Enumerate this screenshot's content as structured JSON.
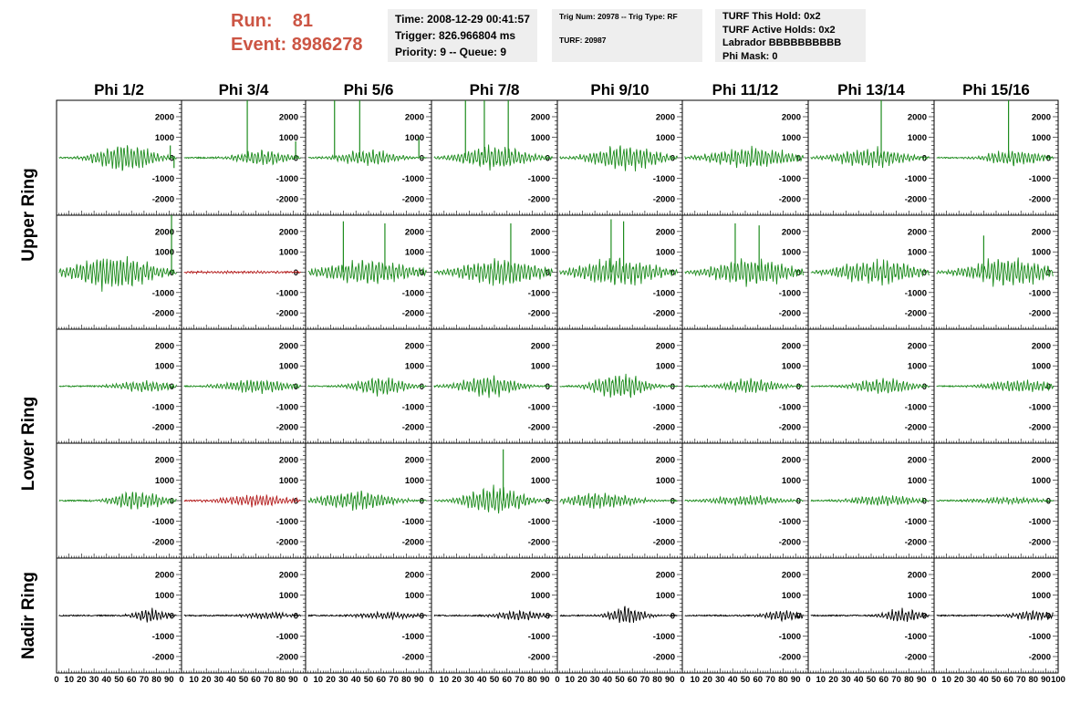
{
  "header": {
    "run_label": "Run:",
    "run_value": "81",
    "event_label": "Event:",
    "event_value": "8986278",
    "time": "Time: 2008-12-29 00:41:57",
    "trigger": "Trigger: 826.966804 ms",
    "priority": "Priority: 9 -- Queue: 9",
    "trig_num": "Trig Num: 20978 -- Trig Type: RF",
    "turf": "TURF: 20987",
    "turf_this_hold": "TURF This Hold: 0x2",
    "turf_active_holds": "TURF Active Holds: 0x2",
    "labrador": "Labrador BBBBBBBBBB",
    "phi_mask": "Phi Mask: 0"
  },
  "colors": {
    "trace_green": "#1e8c1e",
    "trace_red": "#b41e1e",
    "trace_black": "#000000",
    "run_text": "#cc5544",
    "box_bg": "#eeeeee"
  },
  "chart_data": {
    "type": "line",
    "columns": [
      "Phi 1/2",
      "Phi 3/4",
      "Phi 5/6",
      "Phi 7/8",
      "Phi 9/10",
      "Phi 11/12",
      "Phi 13/14",
      "Phi 15/16"
    ],
    "row_labels": [
      "Upper Ring",
      "Lower Ring",
      "Nadir Ring"
    ],
    "ylim": [
      -2800,
      2800
    ],
    "yticks": [
      -2000,
      -1000,
      0,
      1000,
      2000
    ],
    "xlim": [
      0,
      100
    ],
    "xticks": [
      0,
      10,
      20,
      30,
      40,
      50,
      60,
      70,
      80,
      90,
      100
    ],
    "grid": false,
    "rows": [
      {
        "group": "Upper Ring",
        "panels": [
          {
            "color": "green",
            "amp": 800,
            "center": 55,
            "width": 25,
            "spikes": [
              [
                91,
                600
              ],
              [
                94,
                -500
              ]
            ]
          },
          {
            "color": "green",
            "amp": 450,
            "center": 65,
            "width": 22,
            "spikes": [
              [
                53,
                2800
              ],
              [
                92,
                800
              ]
            ]
          },
          {
            "color": "green",
            "amp": 450,
            "center": 50,
            "width": 25,
            "spikes": [
              [
                23,
                2800
              ],
              [
                43,
                2800
              ],
              [
                90,
                1000
              ]
            ]
          },
          {
            "color": "green",
            "amp": 700,
            "center": 50,
            "width": 30,
            "spikes": [
              [
                27,
                2800
              ],
              [
                42,
                2800
              ],
              [
                61,
                2800
              ]
            ]
          },
          {
            "color": "green",
            "amp": 700,
            "center": 55,
            "width": 30,
            "spikes": []
          },
          {
            "color": "green",
            "amp": 600,
            "center": 55,
            "width": 35,
            "spikes": []
          },
          {
            "color": "green",
            "amp": 550,
            "center": 50,
            "width": 30,
            "spikes": [
              [
                58,
                2800
              ]
            ]
          },
          {
            "color": "green",
            "amp": 450,
            "center": 65,
            "width": 25,
            "spikes": [
              [
                60,
                2800
              ]
            ]
          }
        ]
      },
      {
        "group": "Upper Ring",
        "panels": [
          {
            "color": "green",
            "amp": 1000,
            "center": 45,
            "width": 35,
            "spikes": [
              [
                92,
                2800
              ]
            ]
          },
          {
            "color": "red",
            "amp": 60,
            "center": 50,
            "width": 60,
            "spikes": []
          },
          {
            "color": "green",
            "amp": 700,
            "center": 50,
            "width": 40,
            "spikes": [
              [
                30,
                2500
              ],
              [
                63,
                2400
              ]
            ]
          },
          {
            "color": "green",
            "amp": 800,
            "center": 55,
            "width": 35,
            "spikes": [
              [
                63,
                2400
              ]
            ]
          },
          {
            "color": "green",
            "amp": 800,
            "center": 50,
            "width": 35,
            "spikes": [
              [
                43,
                2600
              ],
              [
                53,
                2500
              ]
            ]
          },
          {
            "color": "green",
            "amp": 800,
            "center": 55,
            "width": 35,
            "spikes": [
              [
                42,
                2400
              ],
              [
                61,
                2300
              ]
            ]
          },
          {
            "color": "green",
            "amp": 700,
            "center": 55,
            "width": 35,
            "spikes": []
          },
          {
            "color": "green",
            "amp": 800,
            "center": 60,
            "width": 35,
            "spikes": [
              [
                40,
                1800
              ]
            ]
          }
        ]
      },
      {
        "group": "Lower Ring",
        "panels": [
          {
            "color": "green",
            "amp": 300,
            "center": 70,
            "width": 25,
            "spikes": []
          },
          {
            "color": "green",
            "amp": 400,
            "center": 60,
            "width": 30,
            "spikes": []
          },
          {
            "color": "green",
            "amp": 550,
            "center": 60,
            "width": 22,
            "spikes": []
          },
          {
            "color": "green",
            "amp": 600,
            "center": 45,
            "width": 25,
            "spikes": []
          },
          {
            "color": "green",
            "amp": 750,
            "center": 50,
            "width": 22,
            "spikes": []
          },
          {
            "color": "green",
            "amp": 400,
            "center": 55,
            "width": 25,
            "spikes": []
          },
          {
            "color": "green",
            "amp": 450,
            "center": 60,
            "width": 25,
            "spikes": []
          },
          {
            "color": "green",
            "amp": 350,
            "center": 70,
            "width": 30,
            "spikes": []
          }
        ]
      },
      {
        "group": "Lower Ring",
        "panels": [
          {
            "color": "green",
            "amp": 550,
            "center": 65,
            "width": 22,
            "spikes": []
          },
          {
            "color": "red",
            "amp": 350,
            "center": 60,
            "width": 30,
            "spikes": []
          },
          {
            "color": "green",
            "amp": 550,
            "center": 40,
            "width": 30,
            "spikes": []
          },
          {
            "color": "green",
            "amp": 800,
            "center": 50,
            "width": 25,
            "spikes": [
              [
                57,
                2500
              ]
            ]
          },
          {
            "color": "green",
            "amp": 450,
            "center": 35,
            "width": 30,
            "spikes": []
          },
          {
            "color": "green",
            "amp": 300,
            "center": 50,
            "width": 30,
            "spikes": []
          },
          {
            "color": "green",
            "amp": 300,
            "center": 60,
            "width": 30,
            "spikes": []
          },
          {
            "color": "green",
            "amp": 200,
            "center": 60,
            "width": 30,
            "spikes": []
          }
        ]
      },
      {
        "group": "Nadir Ring",
        "panels": [
          {
            "color": "black",
            "amp": 400,
            "center": 75,
            "width": 14,
            "spikes": []
          },
          {
            "color": "black",
            "amp": 200,
            "center": 70,
            "width": 20,
            "spikes": []
          },
          {
            "color": "black",
            "amp": 200,
            "center": 65,
            "width": 25,
            "spikes": []
          },
          {
            "color": "black",
            "amp": 300,
            "center": 70,
            "width": 20,
            "spikes": []
          },
          {
            "color": "black",
            "amp": 500,
            "center": 55,
            "width": 16,
            "spikes": []
          },
          {
            "color": "black",
            "amp": 300,
            "center": 80,
            "width": 18,
            "spikes": []
          },
          {
            "color": "black",
            "amp": 400,
            "center": 75,
            "width": 16,
            "spikes": []
          },
          {
            "color": "black",
            "amp": 300,
            "center": 80,
            "width": 18,
            "spikes": []
          }
        ]
      }
    ]
  }
}
